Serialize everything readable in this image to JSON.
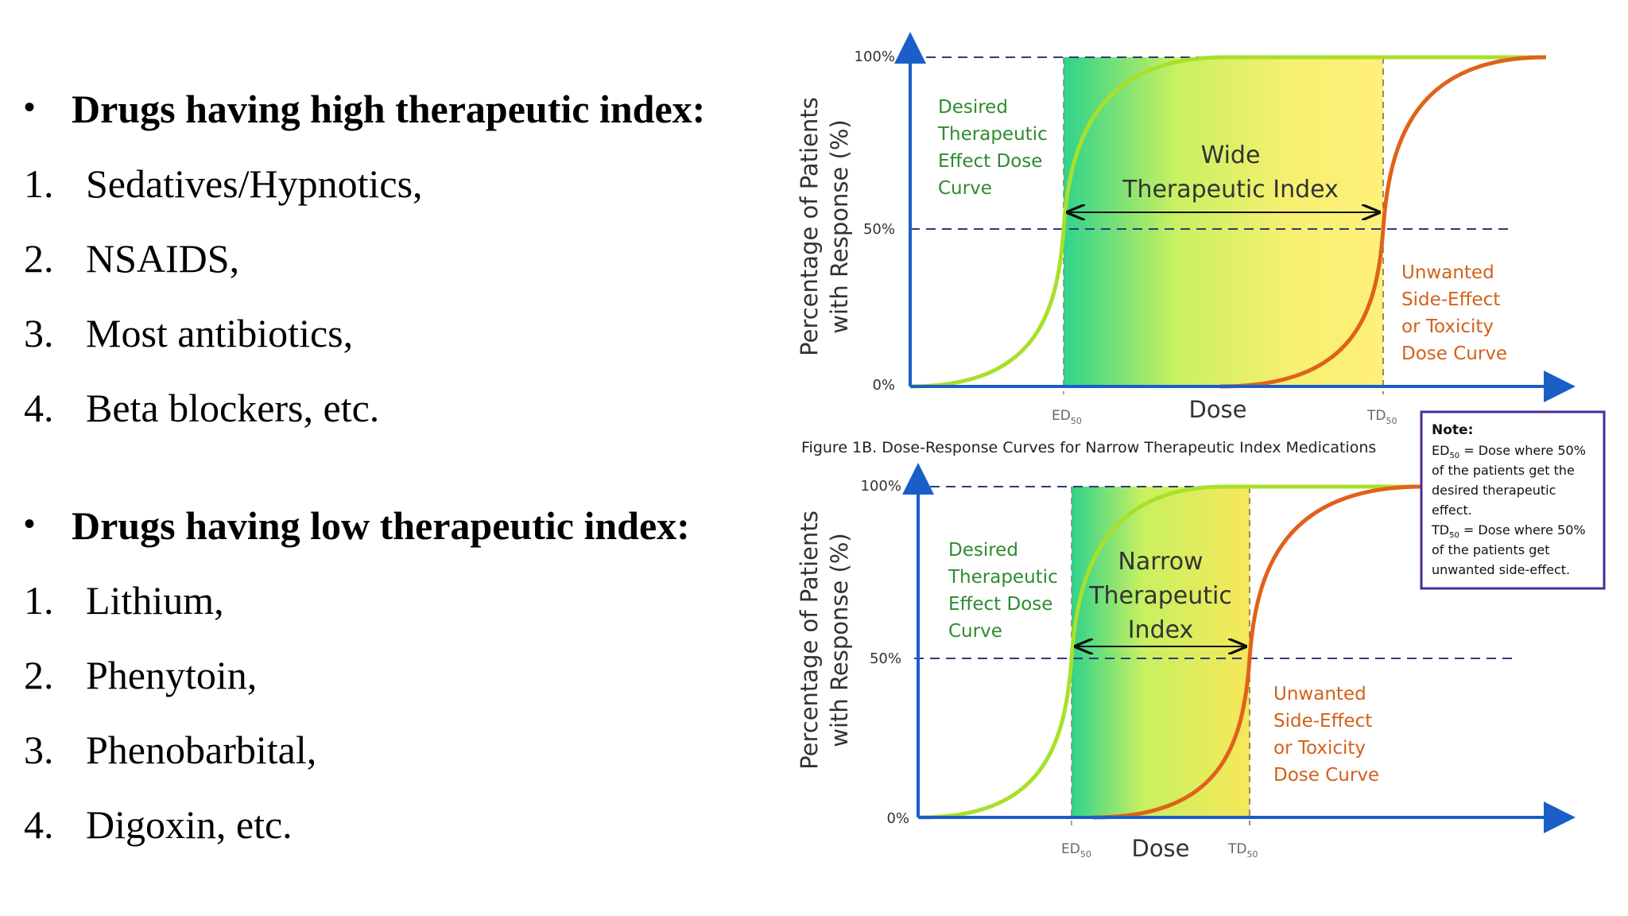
{
  "lists": [
    {
      "heading": "Drugs having high therapeutic index:",
      "items": [
        {
          "num": "1.",
          "text": "Sedatives/Hypnotics,"
        },
        {
          "num": "2.",
          "text": "NSAIDS,"
        },
        {
          "num": "3.",
          "text": "Most antibiotics,"
        },
        {
          "num": "4.",
          "text": "Beta blockers, etc."
        }
      ]
    },
    {
      "heading": "Drugs having low therapeutic index:",
      "items": [
        {
          "num": "1.",
          "text": "Lithium,"
        },
        {
          "num": "2.",
          "text": "Phenytoin,"
        },
        {
          "num": "3.",
          "text": "Phenobarbital,"
        },
        {
          "num": "4.",
          "text": "Digoxin, etc."
        }
      ]
    }
  ],
  "figures": [
    {
      "ylabel_line1": "Percentage of Patients",
      "ylabel_line2": "with Response (%)",
      "ticks": [
        "100%",
        "50%",
        "0%"
      ],
      "xlabel": "Dose",
      "ed_label": "ED",
      "td_label": "TD",
      "sub": "50",
      "desired": [
        "Desired",
        "Therapeutic",
        "Effect Dose",
        "Curve"
      ],
      "index": [
        "Wide",
        "Therapeutic Index"
      ],
      "unwanted": [
        "Unwanted",
        "Side-Effect",
        "or Toxicity",
        "Dose Curve"
      ]
    },
    {
      "caption": "Figure 1B. Dose-Response Curves for Narrow Therapeutic Index Medications",
      "ylabel_line1": "Percentage of Patients",
      "ylabel_line2": "with Response (%)",
      "ticks": [
        "100%",
        "50%",
        "0%"
      ],
      "xlabel": "Dose",
      "ed_label": "ED",
      "td_label": "TD",
      "sub": "50",
      "desired": [
        "Desired",
        "Therapeutic",
        "Effect Dose",
        "Curve"
      ],
      "index": [
        "Narrow",
        "Therapeutic",
        "Index"
      ],
      "unwanted": [
        "Unwanted",
        "Side-Effect",
        "or Toxicity",
        "Dose Curve"
      ]
    }
  ],
  "note": {
    "title": "Note:",
    "lines": [
      {
        "pre": "ED",
        "sub": "50",
        "post": " =  Dose where 50%"
      },
      {
        "pre": "of the patients get the",
        "sub": "",
        "post": ""
      },
      {
        "pre": "desired therapeutic",
        "sub": "",
        "post": ""
      },
      {
        "pre": "effect.",
        "sub": "",
        "post": ""
      },
      {
        "pre": "TD",
        "sub": "50",
        "post": " = Dose where 50%"
      },
      {
        "pre": "of the patients get",
        "sub": "",
        "post": ""
      },
      {
        "pre": "unwanted side-effect.",
        "sub": "",
        "post": ""
      }
    ]
  },
  "colors": {
    "axis": "#1a5fc8",
    "dashed": "#2a3d7a",
    "desired_curve": "#a8e02a",
    "toxic_curve": "#e0621a",
    "desired_text": "#2e8b2e",
    "unwanted_text": "#d4601a",
    "note_border": "#4b2a9a"
  }
}
